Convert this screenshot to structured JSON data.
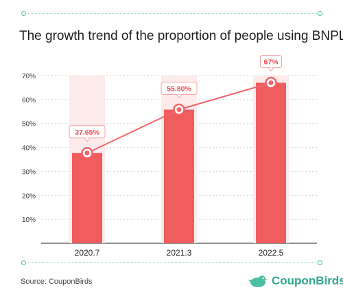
{
  "colors": {
    "bar": "#f05d5f",
    "bar_bg": "#fdeaea",
    "line": "#f26468",
    "accent": "#4bbfa4",
    "brand": "#2fa98c"
  },
  "footer": {
    "source": "Source: CouponBirds",
    "brand": "CouponBirds",
    "brand_mark": "®",
    "brand_icon": "bird-icon"
  },
  "chart_data": {
    "type": "bar",
    "title": "The growth trend of the proportion of people using BNPL",
    "categories": [
      "2020.7",
      "2021.3",
      "2022.5"
    ],
    "values": [
      37.65,
      55.8,
      67
    ],
    "data_labels": [
      "37.65%",
      "55.80%",
      "67%"
    ],
    "line_overlay": true,
    "ylim": [
      0,
      70
    ],
    "yticks": [
      "10%",
      "20%",
      "30%",
      "40%",
      "50%",
      "60%",
      "70%"
    ],
    "grid": true,
    "xlabel": "",
    "ylabel": ""
  }
}
